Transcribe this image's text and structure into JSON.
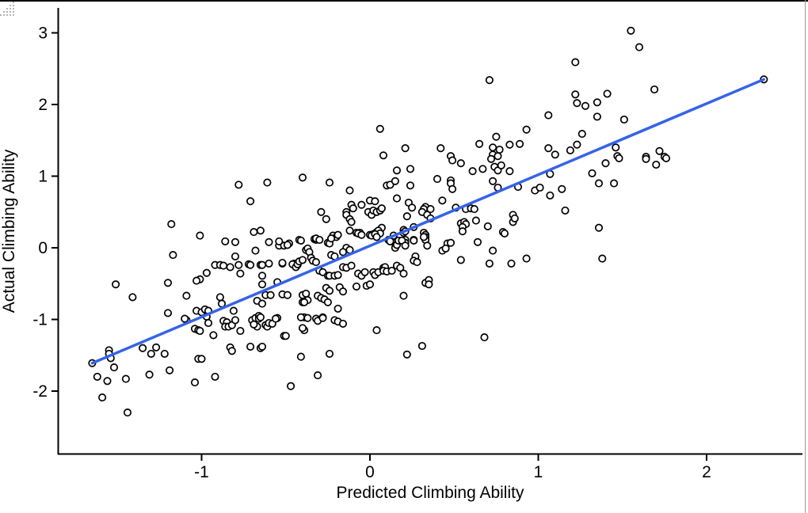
{
  "chart_data": {
    "type": "scatter",
    "title": "",
    "xlabel": "Predicted Climbing Ability",
    "ylabel": "Actual Climbing Ability",
    "x_ticks": [
      "-1",
      "0",
      "1",
      "2"
    ],
    "x_tick_values": [
      -1,
      0,
      1,
      2
    ],
    "y_ticks": [
      "-2",
      "-1",
      "0",
      "1",
      "2",
      "3"
    ],
    "y_tick_values": [
      -2,
      -1,
      0,
      1,
      2,
      3
    ],
    "xlim": [
      -1.85,
      2.56
    ],
    "ylim": [
      -2.87,
      3.35
    ],
    "grid": false,
    "legend": "none",
    "point_color": "#000000",
    "point_fill": "#ffffff",
    "axis_color": "#000000",
    "regression_line": {
      "x1": -1.65,
      "y1": -1.61,
      "x2": 2.34,
      "y2": 2.35,
      "color": "#3563e9",
      "width": 3.5
    },
    "points": [
      [
        0.71,
        2.34
      ],
      [
        0.06,
        1.66
      ],
      [
        0.21,
        1.39
      ],
      [
        0.08,
        1.29
      ],
      [
        0.42,
        1.39
      ],
      [
        0.48,
        1.28
      ],
      [
        0.65,
        1.45
      ],
      [
        0.75,
        1.55
      ],
      [
        0.73,
        1.4
      ],
      [
        0.77,
        1.37
      ],
      [
        0.73,
        1.3
      ],
      [
        0.76,
        1.28
      ],
      [
        0.83,
        1.44
      ],
      [
        0.89,
        1.45
      ],
      [
        0.93,
        1.65
      ],
      [
        1.06,
        1.85
      ],
      [
        1.06,
        1.39
      ],
      [
        1.55,
        3.03
      ],
      [
        1.6,
        2.8
      ],
      [
        1.22,
        2.59
      ],
      [
        2.34,
        2.35
      ],
      [
        1.69,
        2.21
      ],
      [
        1.22,
        2.14
      ],
      [
        1.41,
        2.15
      ],
      [
        1.23,
        2.02
      ],
      [
        1.28,
        1.98
      ],
      [
        1.35,
        2.03
      ],
      [
        1.35,
        1.83
      ],
      [
        1.51,
        1.79
      ],
      [
        1.26,
        1.59
      ],
      [
        1.19,
        1.36
      ],
      [
        1.23,
        1.44
      ],
      [
        1.46,
        1.4
      ],
      [
        1.47,
        1.28
      ],
      [
        1.64,
        1.27
      ],
      [
        1.72,
        1.35
      ],
      [
        1.75,
        1.27
      ],
      [
        1.1,
        1.3
      ],
      [
        1.4,
        1.18
      ],
      [
        1.64,
        1.24
      ],
      [
        1.7,
        1.16
      ],
      [
        1.76,
        1.25
      ],
      [
        1.48,
        1.25
      ],
      [
        1.32,
        1.04
      ],
      [
        1.36,
        0.9
      ],
      [
        1.45,
        0.9
      ],
      [
        1.14,
        0.82
      ],
      [
        1.16,
        0.52
      ],
      [
        1.36,
        0.28
      ],
      [
        1.38,
        -0.15
      ],
      [
        -0.78,
        0.88
      ],
      [
        -0.61,
        0.91
      ],
      [
        -0.4,
        0.98
      ],
      [
        -0.71,
        0.65
      ],
      [
        -1.18,
        0.33
      ],
      [
        -1.01,
        0.17
      ],
      [
        -0.69,
        0.22
      ],
      [
        -0.65,
        0.24
      ],
      [
        -0.86,
        0.09
      ],
      [
        -0.8,
        0.08
      ],
      [
        -0.6,
        0.08
      ],
      [
        -0.54,
        0.03
      ],
      [
        -0.51,
        0.03
      ],
      [
        -0.48,
        0.06
      ],
      [
        -0.42,
        0.11
      ],
      [
        -0.68,
        -0.04
      ],
      [
        -1.17,
        -0.1
      ],
      [
        -0.8,
        -0.12
      ],
      [
        -0.92,
        -0.24
      ],
      [
        -0.89,
        -0.24
      ],
      [
        -0.87,
        -0.25
      ],
      [
        -0.83,
        -0.27
      ],
      [
        -0.78,
        -0.24
      ],
      [
        -0.72,
        -0.23
      ],
      [
        -0.71,
        -0.24
      ],
      [
        -0.65,
        -0.24
      ],
      [
        -0.64,
        -0.24
      ],
      [
        -0.6,
        -0.22
      ],
      [
        -0.52,
        -0.22
      ],
      [
        -0.45,
        -0.22
      ],
      [
        -0.43,
        -0.24
      ],
      [
        -0.77,
        -0.36
      ],
      [
        -0.97,
        -0.35
      ],
      [
        -1.01,
        -0.44
      ],
      [
        -1.03,
        -0.46
      ],
      [
        -0.64,
        -0.39
      ],
      [
        -1.51,
        -0.51
      ],
      [
        -1.2,
        -0.49
      ],
      [
        -0.64,
        -0.51
      ],
      [
        -0.55,
        -0.48
      ],
      [
        -1.41,
        -0.69
      ],
      [
        -1.09,
        -0.67
      ],
      [
        -0.89,
        -0.69
      ],
      [
        -0.67,
        -0.74
      ],
      [
        -0.62,
        -0.66
      ],
      [
        -0.59,
        -0.66
      ],
      [
        -0.52,
        -0.65
      ],
      [
        -0.4,
        -0.66
      ],
      [
        -0.64,
        -0.78
      ],
      [
        -0.88,
        -0.78
      ],
      [
        -0.4,
        -0.76
      ],
      [
        0.49,
        1.22
      ],
      [
        0.54,
        1.18
      ],
      [
        0.61,
        1.07
      ],
      [
        0.67,
        1.1
      ],
      [
        0.72,
        1.24
      ],
      [
        0.74,
        1.13
      ],
      [
        0.76,
        1.08
      ],
      [
        0.78,
        1.15
      ],
      [
        0.83,
        1.07
      ],
      [
        0.16,
        1.08
      ],
      [
        0.24,
        1.1
      ],
      [
        1.07,
        1.03
      ],
      [
        -0.24,
        0.91
      ],
      [
        0.1,
        0.87
      ],
      [
        0.12,
        0.88
      ],
      [
        0.15,
        0.93
      ],
      [
        0.24,
        0.87
      ],
      [
        0.4,
        0.96
      ],
      [
        0.48,
        0.94
      ],
      [
        0.48,
        0.9
      ],
      [
        0.49,
        0.82
      ],
      [
        -0.12,
        0.8
      ],
      [
        0.73,
        0.93
      ],
      [
        0.76,
        0.84
      ],
      [
        0.88,
        0.85
      ],
      [
        0.98,
        0.8
      ],
      [
        1.01,
        0.84
      ],
      [
        1.07,
        0.73
      ],
      [
        0.0,
        0.66
      ],
      [
        0.03,
        0.65
      ],
      [
        0.16,
        0.69
      ],
      [
        0.23,
        0.63
      ],
      [
        0.25,
        0.56
      ],
      [
        0.43,
        0.66
      ],
      [
        0.51,
        0.56
      ],
      [
        0.57,
        0.54
      ],
      [
        0.6,
        0.55
      ],
      [
        0.62,
        0.54
      ],
      [
        -0.11,
        0.6
      ],
      [
        -0.1,
        0.55
      ],
      [
        -0.05,
        0.6
      ],
      [
        -0.01,
        0.5
      ],
      [
        0.01,
        0.46
      ],
      [
        0.02,
        0.52
      ],
      [
        0.04,
        0.5
      ],
      [
        0.06,
        0.52
      ],
      [
        0.07,
        0.55
      ],
      [
        -0.14,
        0.5
      ],
      [
        -0.14,
        0.46
      ],
      [
        -0.29,
        0.5
      ],
      [
        -0.26,
        0.4
      ],
      [
        -0.12,
        0.4
      ],
      [
        -0.11,
        0.36
      ],
      [
        0.22,
        0.44
      ],
      [
        0.33,
        0.57
      ],
      [
        0.32,
        0.54
      ],
      [
        0.36,
        0.54
      ],
      [
        0.31,
        0.5
      ],
      [
        0.34,
        0.46
      ],
      [
        0.36,
        0.41
      ],
      [
        0.54,
        0.34
      ],
      [
        0.56,
        0.36
      ],
      [
        0.57,
        0.33
      ],
      [
        0.63,
        0.38
      ],
      [
        0.55,
        0.29
      ],
      [
        0.55,
        0.23
      ],
      [
        0.7,
        0.3
      ],
      [
        0.79,
        0.22
      ],
      [
        0.8,
        0.2
      ],
      [
        0.85,
        0.46
      ],
      [
        0.85,
        0.36
      ],
      [
        0.86,
        0.41
      ],
      [
        0.06,
        0.24
      ],
      [
        0.07,
        0.28
      ],
      [
        -0.12,
        0.24
      ],
      [
        -0.08,
        0.21
      ],
      [
        -0.06,
        0.21
      ],
      [
        0.0,
        0.18
      ],
      [
        0.02,
        0.19
      ],
      [
        0.04,
        0.22
      ],
      [
        0.05,
        0.24
      ],
      [
        0.06,
        0.2
      ],
      [
        -0.22,
        0.17
      ],
      [
        -0.2,
        0.15
      ],
      [
        -0.19,
        0.18
      ],
      [
        -0.25,
        0.07
      ],
      [
        -0.33,
        0.12
      ],
      [
        -0.32,
        0.11
      ],
      [
        -0.38,
        -0.03
      ],
      [
        -0.37,
        -0.01
      ],
      [
        0.11,
        0.11
      ],
      [
        0.13,
        0.09
      ],
      [
        0.15,
        0.0
      ],
      [
        0.16,
        0.04
      ],
      [
        0.17,
        0.1
      ],
      [
        0.2,
        0.25
      ],
      [
        0.2,
        0.21
      ],
      [
        0.21,
        0.23
      ],
      [
        0.26,
        0.29
      ],
      [
        0.26,
        0.11
      ],
      [
        0.32,
        0.21
      ],
      [
        0.33,
        0.18
      ],
      [
        0.33,
        0.15
      ],
      [
        0.33,
        0.11
      ],
      [
        0.21,
        0.11
      ],
      [
        0.21,
        0.07
      ],
      [
        0.46,
        0.06
      ],
      [
        0.43,
        -0.04
      ],
      [
        0.48,
        0.07
      ],
      [
        0.64,
        0.08
      ],
      [
        0.73,
        -0.04
      ],
      [
        0.54,
        -0.17
      ],
      [
        0.71,
        -0.22
      ],
      [
        0.84,
        -0.22
      ],
      [
        0.93,
        -0.15
      ],
      [
        -0.54,
        0.09
      ],
      [
        -0.49,
        0.04
      ],
      [
        -0.41,
        0.1
      ],
      [
        -0.32,
        0.13
      ],
      [
        -0.3,
        0.11
      ],
      [
        -0.36,
        -0.06
      ],
      [
        -0.24,
        0.06
      ],
      [
        -0.23,
        0.13
      ],
      [
        -0.14,
        0.0
      ],
      [
        -0.12,
        -0.03
      ],
      [
        -0.07,
        0.2
      ],
      [
        -0.05,
        0.18
      ],
      [
        0.01,
        0.17
      ],
      [
        0.03,
        0.19
      ],
      [
        0.04,
        0.15
      ],
      [
        0.12,
        0.09
      ],
      [
        0.14,
        0.17
      ],
      [
        0.19,
        0.1
      ],
      [
        0.21,
        0.03
      ],
      [
        0.26,
        0.1
      ],
      [
        0.32,
        0.15
      ],
      [
        0.34,
        0.03
      ],
      [
        0.45,
        -0.01
      ],
      [
        -0.52,
        -0.21
      ],
      [
        -0.46,
        -0.23
      ],
      [
        -0.44,
        -0.27
      ],
      [
        -0.43,
        -0.23
      ],
      [
        -0.42,
        -0.19
      ],
      [
        -0.4,
        -0.17
      ],
      [
        -0.35,
        -0.14
      ],
      [
        -0.34,
        -0.18
      ],
      [
        -0.32,
        -0.2
      ],
      [
        -0.3,
        -0.32
      ],
      [
        -0.28,
        -0.34
      ],
      [
        -0.23,
        -0.1
      ],
      [
        -0.21,
        -0.12
      ],
      [
        -0.16,
        -0.06
      ],
      [
        -0.16,
        -0.27
      ],
      [
        -0.14,
        -0.28
      ],
      [
        -0.11,
        -0.25
      ],
      [
        -0.25,
        -0.39
      ],
      [
        -0.24,
        -0.39
      ],
      [
        -0.21,
        -0.39
      ],
      [
        -0.19,
        -0.38
      ],
      [
        -0.07,
        -0.36
      ],
      [
        -0.05,
        -0.39
      ],
      [
        -0.03,
        -0.34
      ],
      [
        0.02,
        -0.34
      ],
      [
        0.03,
        -0.38
      ],
      [
        0.05,
        -0.34
      ],
      [
        0.08,
        -0.28
      ],
      [
        0.09,
        -0.27
      ],
      [
        0.08,
        -0.32
      ],
      [
        0.1,
        -0.33
      ],
      [
        0.13,
        -0.32
      ],
      [
        0.16,
        -0.25
      ],
      [
        0.18,
        -0.28
      ],
      [
        0.2,
        -0.36
      ],
      [
        0.27,
        -0.12
      ],
      [
        0.26,
        -0.18
      ],
      [
        0.28,
        -0.2
      ],
      [
        0.33,
        -0.49
      ],
      [
        0.35,
        -0.45
      ],
      [
        -0.08,
        -0.54
      ],
      [
        -0.02,
        -0.53
      ],
      [
        0.0,
        -0.51
      ],
      [
        -0.26,
        -0.56
      ],
      [
        -0.24,
        -0.6
      ],
      [
        -0.18,
        -0.55
      ],
      [
        -0.16,
        -0.61
      ],
      [
        -0.49,
        -0.66
      ],
      [
        -0.38,
        -0.64
      ],
      [
        -0.37,
        -0.73
      ],
      [
        -0.39,
        -0.76
      ],
      [
        -0.31,
        -0.67
      ],
      [
        -0.29,
        -0.7
      ],
      [
        -0.27,
        -0.72
      ],
      [
        -0.25,
        -0.76
      ],
      [
        -0.19,
        -0.85
      ],
      [
        -0.39,
        -0.97
      ],
      [
        -0.32,
        -0.99
      ],
      [
        -0.28,
        -0.97
      ],
      [
        -0.21,
        -1.01
      ],
      [
        -0.19,
        -1.03
      ],
      [
        -0.16,
        -1.06
      ],
      [
        -0.39,
        -1.15
      ],
      [
        0.04,
        -1.15
      ],
      [
        0.2,
        -0.67
      ],
      [
        0.35,
        -0.51
      ],
      [
        -0.55,
        -0.98
      ],
      [
        -0.51,
        -1.23
      ],
      [
        -1.65,
        -1.61
      ],
      [
        -1.2,
        -0.91
      ],
      [
        -1.09,
        -1.01
      ],
      [
        -1.1,
        -0.99
      ],
      [
        -1.03,
        -0.88
      ],
      [
        -1.0,
        -0.9
      ],
      [
        -0.98,
        -0.86
      ],
      [
        -0.96,
        -0.88
      ],
      [
        -0.97,
        -0.96
      ],
      [
        -0.96,
        -1.05
      ],
      [
        -1.04,
        -1.13
      ],
      [
        -1.02,
        -1.15
      ],
      [
        -1.01,
        -1.16
      ],
      [
        -0.93,
        -1.22
      ],
      [
        -0.87,
        -1.02
      ],
      [
        -0.85,
        -1.04
      ],
      [
        -0.86,
        -1.1
      ],
      [
        -0.84,
        -1.1
      ],
      [
        -0.82,
        -1.08
      ],
      [
        -0.8,
        -1.01
      ],
      [
        -0.81,
        -0.88
      ],
      [
        -0.77,
        -1.16
      ],
      [
        -0.7,
        -1.01
      ],
      [
        -0.68,
        -0.98
      ],
      [
        -0.66,
        -0.95
      ],
      [
        -0.66,
        -0.99
      ],
      [
        -0.65,
        -0.97
      ],
      [
        -0.67,
        -1.1
      ],
      [
        -0.69,
        -1.07
      ],
      [
        -0.62,
        -1.08
      ],
      [
        -0.61,
        -1.1
      ],
      [
        -0.6,
        -1.05
      ],
      [
        -0.58,
        -1.06
      ],
      [
        -0.56,
        -0.99
      ],
      [
        -0.5,
        -1.23
      ],
      [
        -0.41,
        -0.97
      ],
      [
        -0.4,
        -1.12
      ],
      [
        -0.41,
        -1.52
      ],
      [
        -0.83,
        -1.39
      ],
      [
        -0.82,
        -1.44
      ],
      [
        -0.71,
        -1.38
      ],
      [
        -0.65,
        -1.4
      ],
      [
        -0.64,
        -1.38
      ],
      [
        -1.55,
        -1.43
      ],
      [
        -1.55,
        -1.48
      ],
      [
        -1.54,
        -1.54
      ],
      [
        -1.52,
        -1.67
      ],
      [
        -1.35,
        -1.4
      ],
      [
        -1.3,
        -1.48
      ],
      [
        -1.27,
        -1.39
      ],
      [
        -1.22,
        -1.48
      ],
      [
        -1.31,
        -1.77
      ],
      [
        -1.19,
        -1.71
      ],
      [
        -1.62,
        -1.8
      ],
      [
        -1.56,
        -1.86
      ],
      [
        -1.45,
        -1.83
      ],
      [
        -1.02,
        -1.55
      ],
      [
        -1.0,
        -1.55
      ],
      [
        -1.04,
        -1.88
      ],
      [
        -0.92,
        -1.8
      ],
      [
        -0.47,
        -1.93
      ],
      [
        -1.59,
        -2.09
      ],
      [
        -1.44,
        -2.3
      ],
      [
        -0.37,
        -0.98
      ],
      [
        -0.31,
        -1.02
      ],
      [
        -0.28,
        -0.98
      ],
      [
        0.31,
        -1.37
      ],
      [
        0.22,
        -1.49
      ],
      [
        -0.24,
        -1.48
      ],
      [
        -0.31,
        -1.78
      ],
      [
        0.68,
        -1.25
      ]
    ]
  },
  "frame": {
    "top_border_color": "#000000",
    "right_border_color": "#9b9b9b",
    "grip_dot_color": "#b4b4b4"
  }
}
